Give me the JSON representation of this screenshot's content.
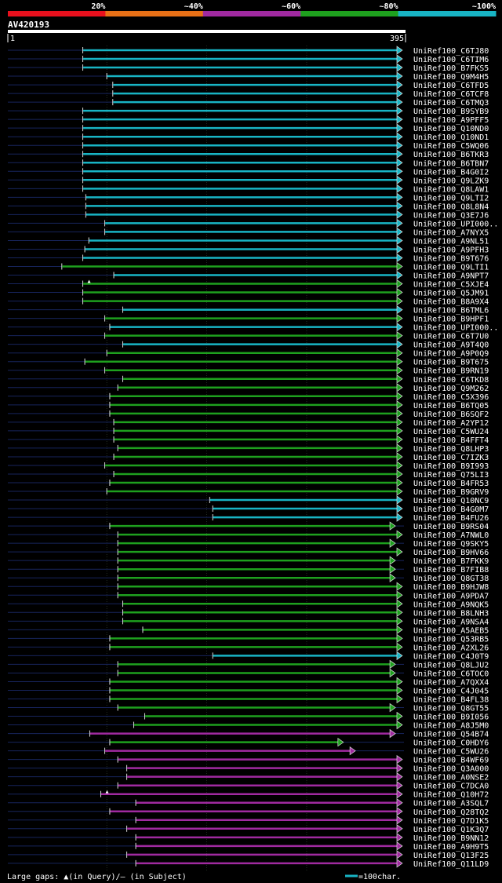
{
  "chart_data": {
    "type": "bar",
    "title": "AV420193",
    "scale_labels": [
      "20%",
      "~40%",
      "~60%",
      "~80%",
      "~100%"
    ],
    "scale_colors": [
      "#e8101d",
      "#e87016",
      "#a02aa0",
      "#1ea01e",
      "#18b4c4"
    ],
    "query_start_label": "1",
    "query_end_label": "395",
    "xlim": [
      1,
      395
    ],
    "legend_text": "Large gaps: ▲(in Query)/– (in Subject)",
    "scale_bar_text": "=100char.",
    "scale_bar_length": 100,
    "hits": [
      {
        "name": "UniRef100_C6TJ80",
        "start": 76,
        "end": 395,
        "identity_class": 4
      },
      {
        "name": "UniRef100_C6TIM6",
        "start": 76,
        "end": 395,
        "identity_class": 4
      },
      {
        "name": "UniRef100_B7FKS5",
        "start": 76,
        "end": 395,
        "identity_class": 4
      },
      {
        "name": "UniRef100_Q9M4H5",
        "start": 100,
        "end": 395,
        "identity_class": 4
      },
      {
        "name": "UniRef100_C6TFD5",
        "start": 106,
        "end": 395,
        "identity_class": 4
      },
      {
        "name": "UniRef100_C6TCF8",
        "start": 106,
        "end": 395,
        "identity_class": 4
      },
      {
        "name": "UniRef100_C6TMQ3",
        "start": 106,
        "end": 395,
        "identity_class": 4
      },
      {
        "name": "UniRef100_B9SYB9",
        "start": 76,
        "end": 395,
        "identity_class": 4
      },
      {
        "name": "UniRef100_A9PFF5",
        "start": 76,
        "end": 395,
        "identity_class": 4
      },
      {
        "name": "UniRef100_Q10ND0",
        "start": 76,
        "end": 395,
        "identity_class": 4
      },
      {
        "name": "UniRef100_Q10ND1",
        "start": 76,
        "end": 395,
        "identity_class": 4
      },
      {
        "name": "UniRef100_C5WQ06",
        "start": 76,
        "end": 395,
        "identity_class": 4
      },
      {
        "name": "UniRef100_B6TKR3",
        "start": 76,
        "end": 395,
        "identity_class": 4
      },
      {
        "name": "UniRef100_B6TBN7",
        "start": 76,
        "end": 395,
        "identity_class": 4
      },
      {
        "name": "UniRef100_B4G0I2",
        "start": 76,
        "end": 395,
        "identity_class": 4
      },
      {
        "name": "UniRef100_Q9LZK9",
        "start": 76,
        "end": 395,
        "identity_class": 4
      },
      {
        "name": "UniRef100_Q8LAW1",
        "start": 76,
        "end": 395,
        "identity_class": 4
      },
      {
        "name": "UniRef100_Q9LTI2",
        "start": 79,
        "end": 395,
        "identity_class": 4
      },
      {
        "name": "UniRef100_Q8L8N4",
        "start": 79,
        "end": 395,
        "identity_class": 4
      },
      {
        "name": "UniRef100_Q3E7J6",
        "start": 79,
        "end": 395,
        "identity_class": 4
      },
      {
        "name": "UniRef100_UPI000..",
        "start": 98,
        "end": 395,
        "identity_class": 4
      },
      {
        "name": "UniRef100_A7NYX5",
        "start": 98,
        "end": 395,
        "identity_class": 4
      },
      {
        "name": "UniRef100_A9NL51",
        "start": 82,
        "end": 395,
        "identity_class": 4
      },
      {
        "name": "UniRef100_A9PFH3",
        "start": 78,
        "end": 395,
        "identity_class": 4
      },
      {
        "name": "UniRef100_B9T676",
        "start": 76,
        "end": 395,
        "identity_class": 4
      },
      {
        "name": "UniRef100_Q9LTI1",
        "start": 55,
        "end": 395,
        "identity_class": 3
      },
      {
        "name": "UniRef100_A9NPT7",
        "start": 107,
        "end": 395,
        "identity_class": 4
      },
      {
        "name": "UniRef100_C5XJE4",
        "start": 76,
        "end": 395,
        "identity_class": 3,
        "query_gap": true
      },
      {
        "name": "UniRef100_Q5JM91",
        "start": 76,
        "end": 395,
        "identity_class": 3
      },
      {
        "name": "UniRef100_B8A9X4",
        "start": 76,
        "end": 395,
        "identity_class": 3
      },
      {
        "name": "UniRef100_B6TML6",
        "start": 116,
        "end": 395,
        "identity_class": 4
      },
      {
        "name": "UniRef100_B9HPF1",
        "start": 98,
        "end": 395,
        "identity_class": 3
      },
      {
        "name": "UniRef100_UPI000..",
        "start": 103,
        "end": 395,
        "identity_class": 4
      },
      {
        "name": "UniRef100_C6T7U0",
        "start": 98,
        "end": 395,
        "identity_class": 3
      },
      {
        "name": "UniRef100_A9T4Q0",
        "start": 116,
        "end": 395,
        "identity_class": 4
      },
      {
        "name": "UniRef100_A9P0Q9",
        "start": 100,
        "end": 395,
        "identity_class": 3
      },
      {
        "name": "UniRef100_B9T675",
        "start": 78,
        "end": 395,
        "identity_class": 3
      },
      {
        "name": "UniRef100_B9RN19",
        "start": 98,
        "end": 395,
        "identity_class": 3
      },
      {
        "name": "UniRef100_C6TKD8",
        "start": 116,
        "end": 395,
        "identity_class": 3
      },
      {
        "name": "UniRef100_Q9M262",
        "start": 111,
        "end": 395,
        "identity_class": 3
      },
      {
        "name": "UniRef100_C5X396",
        "start": 103,
        "end": 395,
        "identity_class": 3
      },
      {
        "name": "UniRef100_B6TQ05",
        "start": 103,
        "end": 395,
        "identity_class": 3
      },
      {
        "name": "UniRef100_B6SQF2",
        "start": 103,
        "end": 395,
        "identity_class": 3
      },
      {
        "name": "UniRef100_A2YP12",
        "start": 107,
        "end": 395,
        "identity_class": 3
      },
      {
        "name": "UniRef100_C5WU24",
        "start": 107,
        "end": 395,
        "identity_class": 3
      },
      {
        "name": "UniRef100_B4FFT4",
        "start": 107,
        "end": 395,
        "identity_class": 3
      },
      {
        "name": "UniRef100_Q8LHP3",
        "start": 111,
        "end": 395,
        "identity_class": 3
      },
      {
        "name": "UniRef100_C7IZK3",
        "start": 107,
        "end": 395,
        "identity_class": 3
      },
      {
        "name": "UniRef100_B9I993",
        "start": 98,
        "end": 395,
        "identity_class": 3
      },
      {
        "name": "UniRef100_Q75LI3",
        "start": 107,
        "end": 395,
        "identity_class": 3
      },
      {
        "name": "UniRef100_B4FR53",
        "start": 103,
        "end": 395,
        "identity_class": 3
      },
      {
        "name": "UniRef100_B9GRV9",
        "start": 100,
        "end": 395,
        "identity_class": 3
      },
      {
        "name": "UniRef100_Q10NC9",
        "start": 203,
        "end": 395,
        "identity_class": 4
      },
      {
        "name": "UniRef100_B4G0M7",
        "start": 206,
        "end": 395,
        "identity_class": 4
      },
      {
        "name": "UniRef100_B4FU26",
        "start": 206,
        "end": 395,
        "identity_class": 4
      },
      {
        "name": "UniRef100_B9RS04",
        "start": 103,
        "end": 388,
        "identity_class": 3
      },
      {
        "name": "UniRef100_A7NWL0",
        "start": 111,
        "end": 395,
        "identity_class": 3
      },
      {
        "name": "UniRef100_Q9SKY5",
        "start": 111,
        "end": 388,
        "identity_class": 3
      },
      {
        "name": "UniRef100_B9HV66",
        "start": 111,
        "end": 395,
        "identity_class": 3
      },
      {
        "name": "UniRef100_B7FKK9",
        "start": 111,
        "end": 388,
        "identity_class": 3
      },
      {
        "name": "UniRef100_B7FIB8",
        "start": 111,
        "end": 388,
        "identity_class": 3
      },
      {
        "name": "UniRef100_Q8GT38",
        "start": 111,
        "end": 388,
        "identity_class": 3
      },
      {
        "name": "UniRef100_B9HJW8",
        "start": 111,
        "end": 395,
        "identity_class": 3
      },
      {
        "name": "UniRef100_A9PDA7",
        "start": 111,
        "end": 395,
        "identity_class": 3
      },
      {
        "name": "UniRef100_A9NQK5",
        "start": 116,
        "end": 395,
        "identity_class": 3
      },
      {
        "name": "UniRef100_B8LNH3",
        "start": 116,
        "end": 395,
        "identity_class": 3
      },
      {
        "name": "UniRef100_A9NSA4",
        "start": 116,
        "end": 395,
        "identity_class": 3
      },
      {
        "name": "UniRef100_A5AEB5",
        "start": 136,
        "end": 395,
        "identity_class": 3
      },
      {
        "name": "UniRef100_Q53RB5",
        "start": 103,
        "end": 395,
        "identity_class": 3
      },
      {
        "name": "UniRef100_A2XL26",
        "start": 103,
        "end": 395,
        "identity_class": 3
      },
      {
        "name": "UniRef100_C4J0T9",
        "start": 206,
        "end": 395,
        "identity_class": 4
      },
      {
        "name": "UniRef100_Q8LJU2",
        "start": 111,
        "end": 388,
        "identity_class": 3
      },
      {
        "name": "UniRef100_C6TOC0",
        "start": 111,
        "end": 388,
        "identity_class": 3
      },
      {
        "name": "UniRef100_A7QXX4",
        "start": 103,
        "end": 395,
        "identity_class": 3
      },
      {
        "name": "UniRef100_C4J045",
        "start": 103,
        "end": 395,
        "identity_class": 3
      },
      {
        "name": "UniRef100_B4FL38",
        "start": 103,
        "end": 395,
        "identity_class": 3
      },
      {
        "name": "UniRef100_Q8GT55",
        "start": 111,
        "end": 388,
        "identity_class": 3
      },
      {
        "name": "UniRef100_B9I056",
        "start": 138,
        "end": 395,
        "identity_class": 3
      },
      {
        "name": "UniRef100_A8J5M0",
        "start": 127,
        "end": 395,
        "identity_class": 3
      },
      {
        "name": "UniRef100_Q54B74",
        "start": 83,
        "end": 388,
        "identity_class": 2
      },
      {
        "name": "UniRef100_C0HDY6",
        "start": 103,
        "end": 336,
        "identity_class": 3
      },
      {
        "name": "UniRef100_C5WU26",
        "start": 98,
        "end": 348,
        "identity_class": 2
      },
      {
        "name": "UniRef100_B4WF69",
        "start": 111,
        "end": 395,
        "identity_class": 2
      },
      {
        "name": "UniRef100_Q3A000",
        "start": 120,
        "end": 395,
        "identity_class": 2
      },
      {
        "name": "UniRef100_A0NSE2",
        "start": 120,
        "end": 395,
        "identity_class": 2
      },
      {
        "name": "UniRef100_C7DCA0",
        "start": 111,
        "end": 395,
        "identity_class": 2
      },
      {
        "name": "UniRef100_Q10H72",
        "start": 94,
        "end": 395,
        "identity_class": 2,
        "query_gap": true
      },
      {
        "name": "UniRef100_A3SQL7",
        "start": 129,
        "end": 395,
        "identity_class": 2
      },
      {
        "name": "UniRef100_Q28TQ2",
        "start": 103,
        "end": 395,
        "identity_class": 2
      },
      {
        "name": "UniRef100_Q7D1K5",
        "start": 129,
        "end": 395,
        "identity_class": 2
      },
      {
        "name": "UniRef100_Q1K3Q7",
        "start": 120,
        "end": 395,
        "identity_class": 2
      },
      {
        "name": "UniRef100_B9NN12",
        "start": 129,
        "end": 395,
        "identity_class": 2
      },
      {
        "name": "UniRef100_A9H9T5",
        "start": 129,
        "end": 395,
        "identity_class": 2
      },
      {
        "name": "UniRef100_Q13F25",
        "start": 120,
        "end": 395,
        "identity_class": 2
      },
      {
        "name": "UniRef100_Q11LD9",
        "start": 129,
        "end": 395,
        "identity_class": 2
      }
    ]
  }
}
